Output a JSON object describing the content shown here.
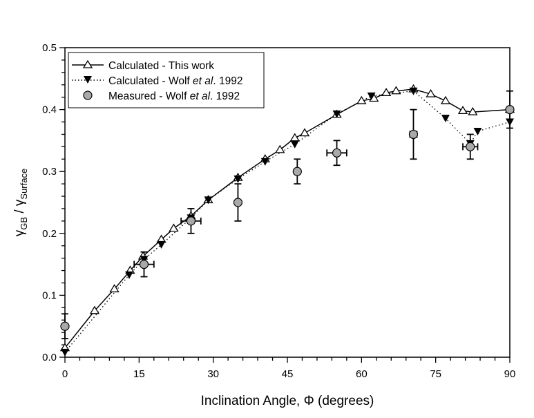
{
  "chart_data": {
    "type": "scatter",
    "xlabel": "Inclination Angle, Φ (degrees)",
    "ylabel": {
      "main": "γ",
      "sub1": "GB",
      "sep": " / γ",
      "sub2": "Surface"
    },
    "xlim": [
      0,
      90
    ],
    "ylim": [
      0,
      0.5
    ],
    "xticks": [
      0,
      15,
      30,
      45,
      60,
      75,
      90
    ],
    "yticks": [
      "0.0",
      "0.1",
      "0.2",
      "0.3",
      "0.4",
      "0.5"
    ],
    "grid": false,
    "legend_placement": "top-left",
    "series": [
      {
        "name": "Calculated - This work",
        "marker": "triangle-up-open",
        "line": "solid",
        "x": [
          0,
          6,
          10,
          13.2,
          15.8,
          19.5,
          22,
          25.5,
          29,
          35,
          40.5,
          43.5,
          46.5,
          48.5,
          55,
          60,
          62.5,
          65,
          67,
          70.5,
          74,
          77,
          80.5,
          82.5,
          90
        ],
        "y": [
          0.015,
          0.075,
          0.11,
          0.14,
          0.163,
          0.19,
          0.208,
          0.228,
          0.254,
          0.29,
          0.32,
          0.335,
          0.354,
          0.362,
          0.392,
          0.414,
          0.418,
          0.427,
          0.43,
          0.433,
          0.425,
          0.414,
          0.398,
          0.396,
          0.4
        ]
      },
      {
        "name": "Calculated - Wolf et al. 1992",
        "name_parts": [
          "Calculated - Wolf ",
          "et al",
          ". 1992"
        ],
        "marker": "triangle-down-filled",
        "line": "dotted",
        "x": [
          0,
          13,
          16,
          19.5,
          25.5,
          29,
          35,
          40.5,
          46.5,
          55,
          62,
          70.5,
          77,
          82,
          83.5,
          90
        ],
        "y": [
          0.008,
          0.133,
          0.158,
          0.182,
          0.225,
          0.254,
          0.288,
          0.316,
          0.344,
          0.393,
          0.422,
          0.43,
          0.386,
          0.345,
          0.365,
          0.38
        ]
      },
      {
        "name": "Measured - Wolf et al. 1992",
        "name_parts": [
          "Measured - Wolf ",
          "et al",
          ". 1992"
        ],
        "marker": "circle-gray",
        "line": "none",
        "x": [
          0,
          16,
          25.5,
          35,
          47,
          55,
          70.5,
          82,
          90
        ],
        "y": [
          0.05,
          0.15,
          0.22,
          0.25,
          0.3,
          0.33,
          0.36,
          0.34,
          0.4
        ],
        "yerr": [
          0.02,
          0.02,
          0.02,
          0.03,
          0.02,
          0.02,
          0.04,
          0.02,
          0.03
        ],
        "xerr": [
          0.5,
          2,
          2,
          0,
          0,
          2,
          0.7,
          1.5,
          0
        ]
      }
    ],
    "colors": {
      "marker_fill": "#a9a9a9",
      "line": "#000000"
    }
  }
}
